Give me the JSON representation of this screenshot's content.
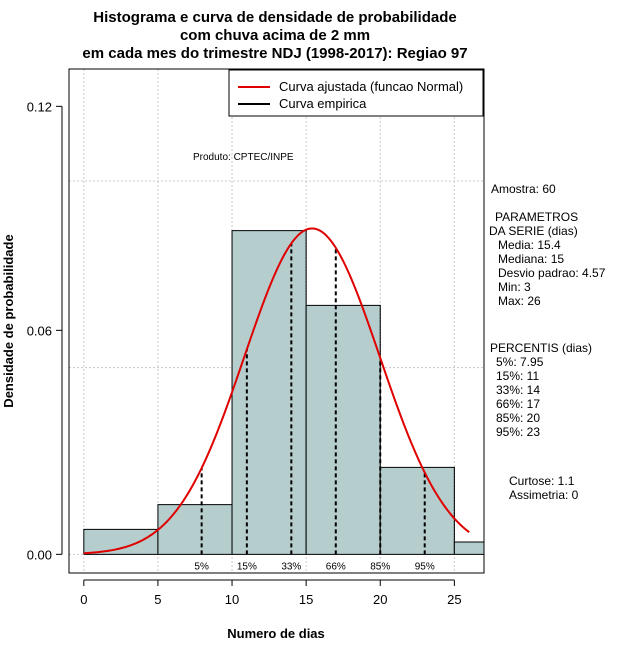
{
  "chart_data": {
    "type": "bar",
    "title_lines": [
      "Histograma e curva de densidade de probabilidade",
      "com chuva acima de 2 mm",
      "em cada mes do trimestre NDJ (1998-2017): Regiao 97"
    ],
    "xlabel": "Numero de dias",
    "ylabel": "Densidade de probabilidade",
    "xlim": [
      -1,
      27
    ],
    "ylim": [
      -0.005,
      0.13
    ],
    "x_ticks": [
      0,
      5,
      10,
      15,
      20,
      25
    ],
    "y_ticks": [
      0.0,
      0.06,
      0.12
    ],
    "y_tick_labels": [
      "0.00",
      "0.06",
      "0.12"
    ],
    "grid_x": [
      0,
      5,
      10,
      15,
      20,
      25
    ],
    "grid_y": [
      0.0,
      0.05,
      0.1
    ],
    "bins": [
      {
        "x0": 0,
        "x1": 5,
        "density": 0.0067
      },
      {
        "x0": 5,
        "x1": 10,
        "density": 0.0133
      },
      {
        "x0": 10,
        "x1": 15,
        "density": 0.0867
      },
      {
        "x0": 15,
        "x1": 20,
        "density": 0.0667
      },
      {
        "x0": 20,
        "x1": 25,
        "density": 0.0233
      },
      {
        "x0": 25,
        "x1": 27,
        "density": 0.0033
      }
    ],
    "bar_color": "#b5cdcd",
    "curve_color": "#e00000",
    "normal_fit": {
      "mean": 15.4,
      "sd": 4.57,
      "x_from": 0,
      "x_to": 26
    },
    "legend": [
      {
        "label": "Curva ajustada (funcao Normal)",
        "color": "#e00000"
      },
      {
        "label": "Curva empirica",
        "color": "#000000"
      }
    ],
    "percentile_markers": [
      {
        "label": "5%",
        "x": 7.95
      },
      {
        "label": "15%",
        "x": 11
      },
      {
        "label": "33%",
        "x": 14
      },
      {
        "label": "66%",
        "x": 17
      },
      {
        "label": "85%",
        "x": 20
      },
      {
        "label": "95%",
        "x": 23
      }
    ],
    "annotation": "Produto: CPTEC/INPE"
  },
  "side_panel": {
    "amostra": "Amostra: 60",
    "parametros_title_1": "PARAMETROS",
    "parametros_title_2": "DA SERIE (dias)",
    "media": "Media: 15.4",
    "mediana": "Mediana: 15",
    "desvio": "Desvio padrao: 4.57",
    "min": "Min: 3",
    "max": "Max: 26",
    "percentis_title": "PERCENTIS (dias)",
    "p5": "5%: 7.95",
    "p15": "15%: 11",
    "p33": "33%: 14",
    "p66": "66%: 17",
    "p85": "85%: 20",
    "p95": "95%: 23",
    "curtose": "Curtose: 1.1",
    "assimetria": "Assimetria: 0"
  }
}
